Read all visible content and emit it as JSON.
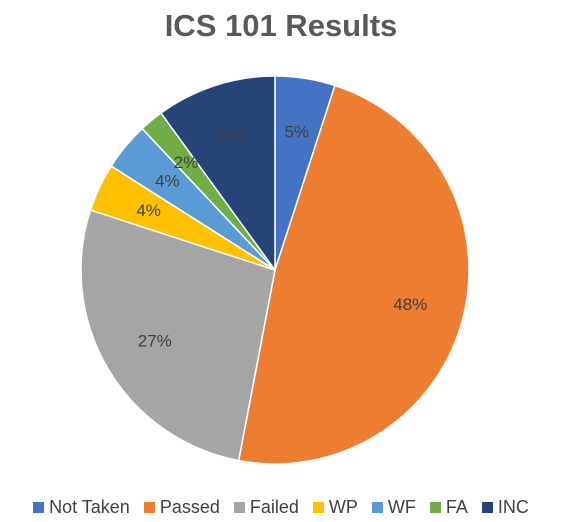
{
  "chart_data": {
    "type": "pie",
    "title": "ICS 101 Results",
    "categories": [
      "Not Taken",
      "Passed",
      "Failed",
      "WP",
      "WF",
      "FA",
      "INC"
    ],
    "values": [
      5,
      48,
      27,
      4,
      4,
      2,
      10
    ],
    "data_labels": [
      "5%",
      "48%",
      "27%",
      "4%",
      "4%",
      "2%",
      "10%"
    ],
    "colors": [
      "#4472C4",
      "#ED7D31",
      "#A5A5A5",
      "#FFC000",
      "#5B9BD5",
      "#70AD47",
      "#264478"
    ],
    "label_color": "#404040",
    "legend_position": "bottom"
  }
}
